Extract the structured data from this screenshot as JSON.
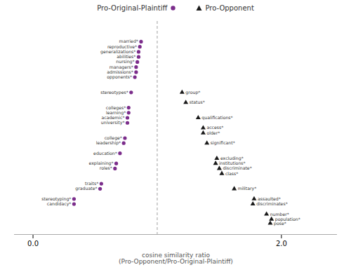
{
  "chart_data": {
    "type": "scatter",
    "xlabel": "cosine similarity ratio\n(Pro-Opponent/Pro-Original-Plaintiff)",
    "xlim": [
      -0.15,
      2.45
    ],
    "xticks": [
      0,
      2
    ],
    "ylim": [
      -5,
      37
    ],
    "tick_labels": "x",
    "grid": false,
    "legend": "top",
    "reference_line": {
      "x": 1.0,
      "color": "#888888",
      "line_style": "dashed"
    },
    "series": [
      {
        "name": "Pro-Original-Plaintiff",
        "color": "#7B2D8B",
        "marker": "circle",
        "x": [
          0.87,
          0.86,
          0.85,
          0.85,
          0.84,
          0.83,
          0.83,
          0.82,
          0.79,
          0.77,
          0.77,
          0.76,
          0.76,
          0.74,
          0.73,
          0.7,
          0.67,
          0.66,
          0.55,
          0.54,
          0.33,
          0.33
        ],
        "y": [
          33,
          32,
          31,
          30,
          29,
          28,
          27,
          26,
          23,
          20,
          19,
          18,
          17,
          14,
          13,
          11,
          9,
          8,
          5,
          4,
          2,
          1
        ],
        "labels": [
          "married*",
          "reproductive*",
          "generalizations*",
          "abilities*",
          "nursing*",
          "managers*",
          "admissions*",
          "opponents*",
          "stereotypes*",
          "colleges*",
          "learning*",
          "academic*",
          "university*",
          "college*",
          "leadership*",
          "education*",
          "explaining*",
          "roles*",
          "traits*",
          "graduate*",
          "stereotyping*",
          "candidacy*"
        ]
      },
      {
        "name": "Pro-Opponent",
        "color": "#1a1a1a",
        "marker": "triangle",
        "x": [
          1.2,
          1.23,
          1.33,
          1.37,
          1.37,
          1.4,
          1.48,
          1.47,
          1.5,
          1.52,
          1.62,
          1.78,
          1.77,
          1.88,
          1.92,
          1.91
        ],
        "y": [
          23,
          21,
          18,
          16,
          15,
          13,
          10,
          9,
          8,
          7,
          4,
          2,
          1,
          -1,
          -2,
          -2.8
        ],
        "labels": [
          "group*",
          "status*",
          "qualifications*",
          "access*",
          "older*",
          "significant*",
          "excluding*",
          "institutions*",
          "discriminate*",
          "class*",
          "military*",
          "assaulted*",
          "discriminates*",
          "number*",
          "population*",
          "pose*"
        ]
      }
    ]
  }
}
